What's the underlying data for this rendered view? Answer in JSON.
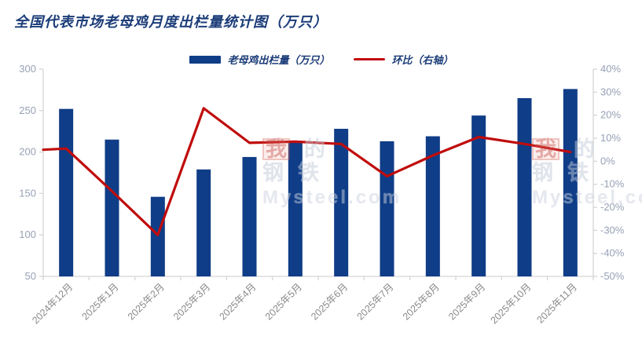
{
  "title": "全国代表市场老母鸡月度出栏量统计图（万只）",
  "legend": {
    "bars_label": "老母鸡出栏量（万只）",
    "line_label": "环比（右轴）"
  },
  "watermark": {
    "c1": "我",
    "c2": "的",
    "c3": "钢",
    "c4": "铁",
    "url": "Mysteel.com"
  },
  "colors": {
    "bar": "#0F3D87",
    "line": "#C00C0C",
    "title_text": "#1B3C78",
    "axis_number_text": "#97A1B5",
    "x_label_text": "#8A8A8A",
    "axis_line": "#D5D5D5"
  },
  "chart_data": {
    "type": "bar",
    "title": "全国代表市场老母鸡月度出栏量统计图（万只）",
    "categories": [
      "2024年12月",
      "2025年1月",
      "2025年2月",
      "2025年3月",
      "2025年4月",
      "2025年5月",
      "2025年6月",
      "2025年7月",
      "2025年8月",
      "2025年9月",
      "2025年10月",
      "2025年11月"
    ],
    "series": [
      {
        "name": "老母鸡出栏量（万只）",
        "type": "bar",
        "axis": "left",
        "values": [
          252,
          215,
          146,
          179,
          194,
          212,
          228,
          213,
          219,
          244,
          265,
          276
        ]
      },
      {
        "name": "环比（右轴）",
        "type": "line",
        "axis": "right",
        "unit": "%",
        "values": [
          5.5,
          -13,
          -32,
          23,
          8,
          8.5,
          7.5,
          -6.5,
          2.5,
          10.5,
          7.5,
          4
        ],
        "lead_in_value": 5
      }
    ],
    "left_axis": {
      "min": 50,
      "max": 300,
      "step": 50,
      "ticks": [
        "300",
        "250",
        "200",
        "150",
        "100",
        "50"
      ]
    },
    "right_axis": {
      "min": -50,
      "max": 40,
      "step": 10,
      "ticks": [
        "40%",
        "30%",
        "20%",
        "10%",
        "0%",
        "-10%",
        "-20%",
        "-30%",
        "-40%",
        "-50%"
      ]
    },
    "grid": false,
    "legend_position": "top-center"
  }
}
